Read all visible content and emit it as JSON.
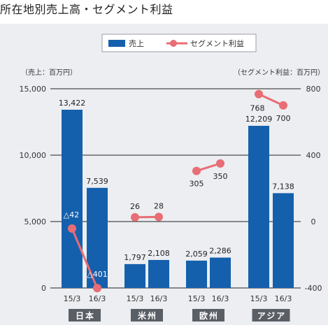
{
  "page": {
    "title": "所在地別売上高・セグメント利益"
  },
  "colors": {
    "bar": "#1560ad",
    "line": "#e86d75",
    "panel": "#eceef1",
    "category_box": "#5a5f66"
  },
  "chart_data": {
    "type": "bar",
    "title": "所在地別売上高・セグメント利益",
    "groups": [
      {
        "name": "日本",
        "periods": [
          "15/3",
          "16/3"
        ]
      },
      {
        "name": "米州",
        "periods": [
          "15/3",
          "16/3"
        ]
      },
      {
        "name": "欧州",
        "periods": [
          "15/3",
          "16/3"
        ]
      },
      {
        "name": "アジア",
        "periods": [
          "15/3",
          "16/3"
        ]
      }
    ],
    "group_labels": [
      "日本",
      "米州",
      "欧州",
      "アジア"
    ],
    "x_tick_labels": [
      "15/3",
      "16/3",
      "15/3",
      "16/3",
      "15/3",
      "16/3",
      "15/3",
      "16/3"
    ],
    "series": [
      {
        "name": "売上",
        "type": "bar",
        "axis": "left",
        "values": [
          13422,
          7539,
          1797,
          2108,
          2059,
          2286,
          12209,
          7138
        ],
        "labels": [
          "13,422",
          "7,539",
          "1,797",
          "2,108",
          "2,059",
          "2,286",
          "12,209",
          "7,138"
        ]
      },
      {
        "name": "セグメント利益",
        "type": "line",
        "axis": "right",
        "values": [
          -42,
          -401,
          26,
          28,
          305,
          350,
          768,
          700
        ],
        "labels": [
          "△42",
          "△401",
          "26",
          "28",
          "305",
          "350",
          "768",
          "700"
        ]
      }
    ],
    "left_axis": {
      "unit_label": "（売上：百万円）",
      "ylim": [
        0,
        15000
      ],
      "ticks": [
        0,
        5000,
        10000,
        15000
      ],
      "tick_labels": [
        "0",
        "5,000",
        "10,000",
        "15,000"
      ]
    },
    "right_axis": {
      "unit_label": "（セグメント利益：百万円）",
      "ylim": [
        -400,
        800
      ],
      "ticks": [
        -400,
        0,
        400,
        800
      ],
      "tick_labels": [
        "-400",
        "0",
        "400",
        "800"
      ]
    },
    "legend": {
      "position": "top-center",
      "items": [
        {
          "name": "売上",
          "marker": "bar"
        },
        {
          "name": "セグメント利益",
          "marker": "line"
        }
      ]
    },
    "grid": true
  }
}
